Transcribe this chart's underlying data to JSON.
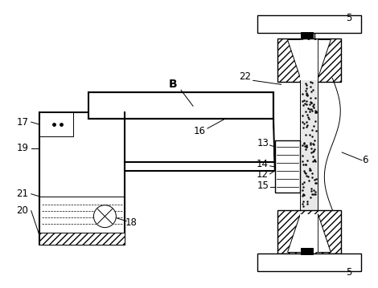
{
  "bg_color": "#ffffff",
  "lw_thin": 0.7,
  "lw_med": 1.0,
  "lw_thick": 1.5,
  "fig_width": 4.7,
  "fig_height": 3.59,
  "dpi": 100
}
